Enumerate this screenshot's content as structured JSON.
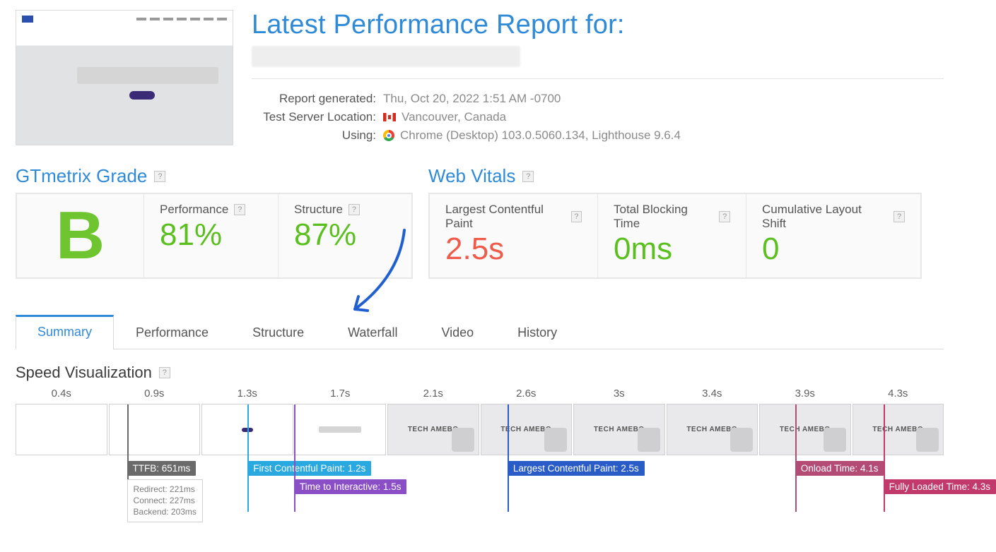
{
  "header": {
    "title": "Latest Performance Report for:"
  },
  "meta": {
    "generated_label": "Report generated:",
    "generated_value": "Thu, Oct 20, 2022 1:51 AM -0700",
    "location_label": "Test Server Location:",
    "location_value": "Vancouver, Canada",
    "using_label": "Using:",
    "using_value": "Chrome (Desktop) 103.0.5060.134, Lighthouse 9.6.4"
  },
  "grade": {
    "heading": "GTmetrix Grade",
    "letter": "B",
    "letter_color": "#6fc52f",
    "perf_label": "Performance",
    "perf_value": "81%",
    "struct_label": "Structure",
    "struct_value": "87%",
    "value_color": "#5bbf1f"
  },
  "vitals": {
    "heading": "Web Vitals",
    "lcp_label": "Largest Contentful Paint",
    "lcp_value": "2.5s",
    "lcp_color": "#ef5a4a",
    "tbt_label": "Total Blocking Time",
    "tbt_value": "0ms",
    "cls_label": "Cumulative Layout Shift",
    "cls_value": "0",
    "good_color": "#5bbf1f"
  },
  "tabs": {
    "summary": "Summary",
    "performance": "Performance",
    "structure": "Structure",
    "waterfall": "Waterfall",
    "video": "Video",
    "history": "History"
  },
  "speedvis": {
    "heading": "Speed Visualization",
    "times": [
      "0.4s",
      "0.9s",
      "1.3s",
      "1.7s",
      "2.1s",
      "2.6s",
      "3s",
      "3.4s",
      "3.9s",
      "4.3s"
    ],
    "frame_text": "TECH AMEBO",
    "markers": {
      "ttfb": {
        "label": "TTFB: 651ms",
        "pct": 12,
        "color": "#6a6a6a",
        "sub": [
          "Redirect: 221ms",
          "Connect: 227ms",
          "Backend: 203ms"
        ]
      },
      "fcp": {
        "label": "First Contentful Paint: 1.2s",
        "pct": 25,
        "color": "#2aa9e0"
      },
      "tti": {
        "label": "Time to Interactive: 1.5s",
        "pct": 30,
        "color": "#8a4fc7",
        "row": 2
      },
      "lcp": {
        "label": "Largest Contentful Paint: 2.5s",
        "pct": 53,
        "color": "#2a5cc7"
      },
      "onload": {
        "label": "Onload Time: 4.1s",
        "pct": 84,
        "color": "#b34b74"
      },
      "full": {
        "label": "Fully Loaded Time: 4.3s",
        "pct": 93.5,
        "color": "#c23a6b",
        "row": 2
      }
    }
  },
  "colors": {
    "link": "#2f8ad8",
    "border": "#e7e7e7",
    "panel_bg": "#fafafa",
    "arrow": "#1f5fd0"
  }
}
